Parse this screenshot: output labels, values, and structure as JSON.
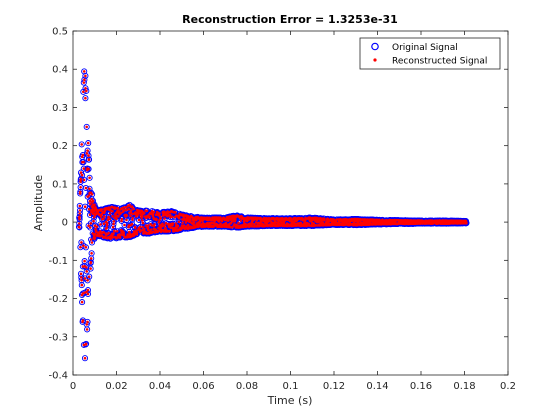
{
  "chart_data": {
    "type": "scatter",
    "title": "Reconstruction Error = 1.3253e-31",
    "xlabel": "Time (s)",
    "ylabel": "Amplitude",
    "xlim": [
      0,
      0.2
    ],
    "ylim": [
      -0.4,
      0.5
    ],
    "x_ticks": [
      "0",
      "0.02",
      "0.04",
      "0.06",
      "0.08",
      "0.1",
      "0.12",
      "0.14",
      "0.16",
      "0.18",
      "0.2"
    ],
    "y_ticks": [
      "-0.4",
      "-0.3",
      "-0.2",
      "-0.1",
      "0",
      "0.1",
      "0.2",
      "0.3",
      "0.4",
      "0.5"
    ],
    "grid": false,
    "legend_position": "top-right",
    "series": [
      {
        "name": "Original Signal",
        "marker": "open circle",
        "color": "#0000ff"
      },
      {
        "name": "Reconstructed Signal",
        "marker": "filled point",
        "color": "#ff0000"
      }
    ],
    "envelope": {
      "x": [
        0.0,
        0.003,
        0.0045,
        0.0055,
        0.0065,
        0.0075,
        0.009,
        0.011,
        0.014,
        0.018,
        0.022,
        0.026,
        0.03,
        0.035,
        0.04,
        0.045,
        0.05,
        0.055,
        0.06,
        0.07,
        0.075,
        0.08,
        0.09,
        0.1,
        0.11,
        0.12,
        0.13,
        0.14,
        0.15,
        0.16,
        0.17,
        0.181
      ],
      "high": [
        0.0,
        0.015,
        0.3,
        0.45,
        0.26,
        0.14,
        0.06,
        0.03,
        0.035,
        0.04,
        0.035,
        0.045,
        0.03,
        0.03,
        0.025,
        0.03,
        0.02,
        0.015,
        0.012,
        0.012,
        0.018,
        0.012,
        0.01,
        0.01,
        0.012,
        0.007,
        0.008,
        0.006,
        0.005,
        0.004,
        0.004,
        0.003
      ],
      "low": [
        0.0,
        -0.015,
        -0.28,
        -0.38,
        -0.27,
        -0.16,
        -0.05,
        -0.035,
        -0.04,
        -0.045,
        -0.04,
        -0.04,
        -0.03,
        -0.03,
        -0.025,
        -0.025,
        -0.02,
        -0.015,
        -0.012,
        -0.012,
        -0.015,
        -0.012,
        -0.01,
        -0.01,
        -0.01,
        -0.007,
        -0.008,
        -0.006,
        -0.005,
        -0.004,
        -0.004,
        -0.003
      ]
    }
  }
}
